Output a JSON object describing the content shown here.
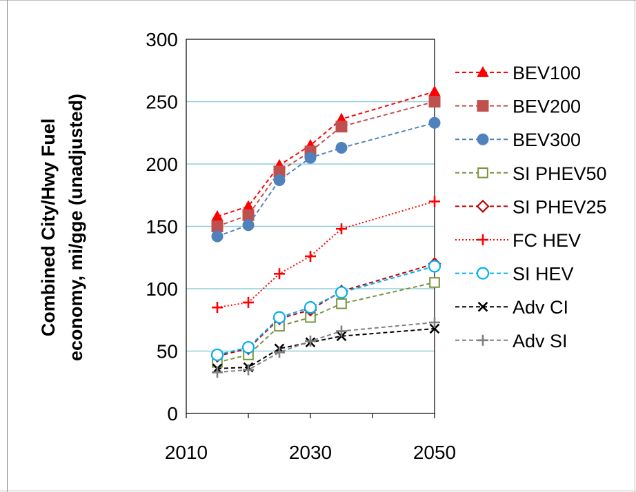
{
  "chart_data": {
    "type": "line",
    "title": "",
    "xlabel": "",
    "ylabel_line1": "Combined City/Hwy Fuel",
    "ylabel_line2": "economy, mi/gge (unadjusted)",
    "xlim": [
      2010,
      2050
    ],
    "ylim": [
      0,
      300
    ],
    "x_ticks": [
      2010,
      2030,
      2050
    ],
    "y_ticks": [
      0,
      50,
      100,
      150,
      200,
      250,
      300
    ],
    "gridlines": "horizontal",
    "grid_color": "#8ecfd8",
    "legend_position": "right",
    "x": [
      2015,
      2020,
      2025,
      2030,
      2035,
      2050
    ],
    "series": [
      {
        "name": "BEV100",
        "color": "#ff0000",
        "marker": "triangle",
        "dash": "dashed",
        "values": [
          158,
          166,
          199,
          215,
          236,
          258
        ]
      },
      {
        "name": "BEV200",
        "color": "#c0504d",
        "marker": "square",
        "dash": "dashed",
        "values": [
          150,
          159,
          194,
          210,
          230,
          250
        ]
      },
      {
        "name": "BEV300",
        "color": "#4f81bd",
        "marker": "circle",
        "dash": "dashed",
        "values": [
          142,
          151,
          187,
          205,
          213,
          233
        ]
      },
      {
        "name": "SI PHEV50",
        "color": "#77933c",
        "marker": "square-open",
        "dash": "dashed",
        "values": [
          41,
          47,
          70,
          77,
          88,
          105
        ]
      },
      {
        "name": "SI PHEV25",
        "color": "#c00000",
        "marker": "diamond-open",
        "dash": "dashed",
        "values": [
          46,
          52,
          76,
          83,
          98,
          120
        ]
      },
      {
        "name": "FC HEV",
        "color": "#ff0000",
        "marker": "plus",
        "dash": "dotted",
        "values": [
          85,
          89,
          112,
          126,
          148,
          170
        ]
      },
      {
        "name": "SI HEV",
        "color": "#00b0f0",
        "marker": "circle-open",
        "dash": "dashed",
        "values": [
          47,
          53,
          77,
          85,
          97,
          118
        ]
      },
      {
        "name": "Adv CI",
        "color": "#000000",
        "marker": "x",
        "dash": "dashed",
        "values": [
          36,
          37,
          52,
          57,
          62,
          68
        ]
      },
      {
        "name": "Adv SI",
        "color": "#7f7f7f",
        "marker": "plus",
        "dash": "dashed",
        "values": [
          33,
          35,
          49,
          58,
          66,
          73
        ]
      }
    ]
  }
}
